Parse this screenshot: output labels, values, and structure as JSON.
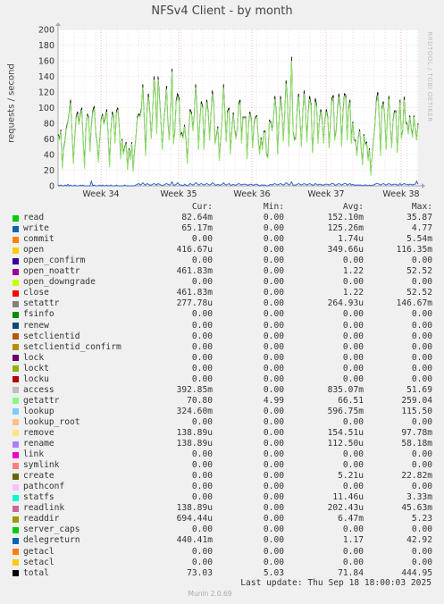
{
  "chart_data": {
    "type": "line",
    "title": "NFSv4 Client - by month",
    "ylabel": "requests / second",
    "ylim": [
      0,
      200
    ],
    "yticks": [
      0,
      20,
      40,
      60,
      80,
      100,
      120,
      140,
      160,
      180,
      200
    ],
    "xticks": [
      "Week 34",
      "Week 35",
      "Week 36",
      "Week 37",
      "Week 38"
    ],
    "grid": true,
    "series": [
      {
        "name": "total",
        "color": "#000000",
        "values": [
          66,
          60,
          72,
          24,
          48,
          58,
          75,
          82,
          94,
          110,
          68,
          30,
          62,
          88,
          95,
          80,
          92,
          100,
          62,
          24,
          72,
          92,
          88,
          45,
          78,
          96,
          102,
          70,
          56,
          32,
          60,
          85,
          92,
          80,
          88,
          98,
          66,
          26,
          70,
          95,
          88,
          56,
          96,
          100,
          76,
          36,
          60,
          42,
          50,
          56,
          22,
          48,
          35,
          56,
          20,
          45,
          62,
          88,
          92,
          90,
          100,
          130,
          85,
          40,
          98,
          118,
          95,
          62,
          92,
          140,
          118,
          68,
          140,
          112,
          84,
          48,
          80,
          100,
          128,
          82,
          60,
          96,
          150,
          55,
          70,
          110,
          118,
          112,
          65,
          68,
          62,
          78,
          58,
          30,
          72,
          98,
          94,
          72,
          92,
          130,
          100,
          48,
          84,
          108,
          102,
          48,
          88,
          110,
          96,
          60,
          92,
          122,
          104,
          55,
          66,
          76,
          34,
          60,
          86,
          130,
          96,
          58,
          96,
          100,
          42,
          72,
          94,
          72,
          62,
          74,
          106,
          110,
          56,
          88,
          88,
          88,
          36,
          78,
          95,
          85,
          50,
          80,
          88,
          90,
          60,
          42,
          62,
          48,
          70,
          70,
          40,
          38,
          84,
          82,
          72,
          86,
          115,
          95,
          42,
          84,
          115,
          98,
          58,
          90,
          135,
          110,
          52,
          100,
          165,
          70,
          60,
          62,
          98,
          118,
          88,
          52,
          92,
          122,
          98,
          58,
          96,
          115,
          104,
          44,
          70,
          112,
          104,
          56,
          84,
          98,
          85,
          56,
          84,
          98,
          88,
          50,
          84,
          112,
          116,
          60,
          70,
          98,
          118,
          100,
          52,
          96,
          118,
          116,
          60,
          100,
          110,
          56,
          82,
          60,
          58,
          40,
          62,
          72,
          50,
          28,
          66,
          54,
          56,
          34,
          48,
          15,
          42,
          60,
          80,
          110,
          120,
          90,
          40,
          100,
          108,
          86,
          48,
          92,
          115,
          76,
          50,
          84,
          96,
          96,
          44,
          76,
          110,
          62,
          72,
          114,
          82,
          80,
          68,
          90,
          74,
          64,
          90,
          72,
          60,
          80
        ]
      },
      {
        "name": "getattr",
        "color": "#8fe36c",
        "values": [
          64,
          58,
          70,
          22,
          46,
          56,
          72,
          80,
          92,
          106,
          66,
          28,
          60,
          86,
          92,
          78,
          90,
          97,
          60,
          22,
          70,
          90,
          86,
          43,
          76,
          93,
          99,
          68,
          54,
          30,
          58,
          83,
          90,
          78,
          86,
          95,
          64,
          24,
          68,
          92,
          86,
          54,
          93,
          97,
          74,
          34,
          58,
          40,
          48,
          54,
          20,
          46,
          33,
          54,
          18,
          43,
          60,
          86,
          90,
          88,
          97,
          126,
          82,
          38,
          95,
          114,
          92,
          60,
          90,
          136,
          114,
          66,
          136,
          108,
          82,
          46,
          78,
          97,
          124,
          80,
          58,
          93,
          146,
          53,
          68,
          107,
          114,
          108,
          63,
          66,
          60,
          76,
          56,
          28,
          70,
          95,
          91,
          70,
          90,
          126,
          97,
          46,
          82,
          105,
          99,
          46,
          86,
          107,
          93,
          58,
          90,
          118,
          101,
          53,
          64,
          74,
          32,
          58,
          84,
          126,
          93,
          56,
          93,
          97,
          40,
          70,
          91,
          70,
          60,
          72,
          103,
          107,
          54,
          86,
          86,
          86,
          34,
          76,
          92,
          83,
          48,
          78,
          86,
          88,
          58,
          40,
          60,
          46,
          68,
          68,
          38,
          36,
          82,
          80,
          70,
          84,
          111,
          92,
          40,
          82,
          111,
          95,
          56,
          88,
          131,
          107,
          50,
          97,
          160,
          68,
          58,
          60,
          95,
          114,
          86,
          50,
          90,
          118,
          95,
          56,
          93,
          111,
          101,
          42,
          68,
          108,
          101,
          54,
          82,
          95,
          83,
          54,
          82,
          95,
          86,
          48,
          82,
          108,
          112,
          58,
          68,
          95,
          114,
          97,
          50,
          93,
          114,
          112,
          58,
          97,
          107,
          54,
          80,
          58,
          56,
          38,
          60,
          70,
          48,
          26,
          64,
          52,
          54,
          32,
          46,
          13,
          40,
          58,
          78,
          106,
          116,
          88,
          38,
          97,
          105,
          84,
          46,
          90,
          111,
          74,
          48,
          82,
          93,
          93,
          42,
          74,
          107,
          60,
          70,
          110,
          80,
          78,
          66,
          88,
          72,
          62,
          88,
          70,
          58,
          78
        ]
      },
      {
        "name": "lookup",
        "color": "#3366cc",
        "values": [
          1,
          0,
          1,
          0,
          0,
          1,
          0,
          2,
          0,
          1,
          0,
          0,
          1,
          0,
          0,
          0,
          1,
          0,
          1,
          0,
          0,
          0,
          0,
          0,
          6,
          0,
          1,
          0,
          0,
          0,
          1,
          0,
          1,
          0,
          0,
          1,
          0,
          0,
          1,
          0,
          0,
          0,
          1,
          0,
          0,
          0,
          0,
          0,
          1,
          0,
          0,
          0,
          0,
          0,
          0,
          0,
          1,
          2,
          3,
          1,
          2,
          4,
          2,
          1,
          3,
          2,
          1,
          1,
          2,
          3,
          2,
          1,
          3,
          2,
          1,
          0,
          1,
          2,
          3,
          2,
          1,
          2,
          5,
          1,
          1,
          2,
          4,
          2,
          1,
          1,
          0,
          2,
          1,
          0,
          1,
          3,
          2,
          1,
          2,
          4,
          3,
          1,
          2,
          3,
          2,
          1,
          2,
          3,
          2,
          1,
          2,
          4,
          3,
          1,
          1,
          2,
          1,
          1,
          2,
          4,
          2,
          1,
          2,
          3,
          1,
          1,
          2,
          1,
          1,
          2,
          3,
          2,
          1,
          2,
          2,
          2,
          1,
          1,
          2,
          2,
          1,
          1,
          2,
          2,
          1,
          0,
          1,
          1,
          1,
          1,
          0,
          0,
          1,
          2,
          1,
          2,
          3,
          2,
          1,
          2,
          3,
          2,
          1,
          2,
          4,
          3,
          1,
          2,
          5,
          1,
          1,
          1,
          2,
          3,
          2,
          1,
          2,
          3,
          2,
          1,
          2,
          3,
          2,
          1,
          1,
          3,
          2,
          1,
          2,
          2,
          1,
          1,
          2,
          2,
          2,
          1,
          2,
          3,
          3,
          1,
          1,
          2,
          3,
          2,
          1,
          2,
          3,
          3,
          1,
          2,
          3,
          1,
          2,
          1,
          1,
          1,
          1,
          1,
          1,
          0,
          1,
          1,
          1,
          0,
          1,
          0,
          1,
          1,
          2,
          3,
          3,
          2,
          1,
          2,
          3,
          2,
          1,
          2,
          3,
          2,
          1,
          2,
          2,
          2,
          1,
          1,
          3,
          1,
          2,
          3,
          2,
          2,
          1,
          2,
          2,
          1,
          2,
          2,
          6,
          2
        ]
      }
    ]
  },
  "side_tag": "RRDTOOL / TOBI OETIKER",
  "legend_header": {
    "cur": "Cur:",
    "min": "Min:",
    "avg": "Avg:",
    "max": "Max:"
  },
  "legend": [
    {
      "name": "read",
      "color": "#00cc00",
      "cur": "82.64m",
      "min": "0.00",
      "avg": "152.10m",
      "max": "35.87"
    },
    {
      "name": "write",
      "color": "#0066b3",
      "cur": "65.17m",
      "min": "0.00",
      "avg": "125.26m",
      "max": "4.77"
    },
    {
      "name": "commit",
      "color": "#ff8000",
      "cur": "0.00",
      "min": "0.00",
      "avg": "1.74u",
      "max": "5.54m"
    },
    {
      "name": "open",
      "color": "#ffcc00",
      "cur": "416.67u",
      "min": "0.00",
      "avg": "349.66u",
      "max": "116.35m"
    },
    {
      "name": "open_confirm",
      "color": "#330099",
      "cur": "0.00",
      "min": "0.00",
      "avg": "0.00",
      "max": "0.00"
    },
    {
      "name": "open_noattr",
      "color": "#990099",
      "cur": "461.83m",
      "min": "0.00",
      "avg": "1.22",
      "max": "52.52"
    },
    {
      "name": "open_downgrade",
      "color": "#ccff00",
      "cur": "0.00",
      "min": "0.00",
      "avg": "0.00",
      "max": "0.00"
    },
    {
      "name": "close",
      "color": "#ff0000",
      "cur": "461.83m",
      "min": "0.00",
      "avg": "1.22",
      "max": "52.52"
    },
    {
      "name": "setattr",
      "color": "#808080",
      "cur": "277.78u",
      "min": "0.00",
      "avg": "264.93u",
      "max": "146.67m"
    },
    {
      "name": "fsinfo",
      "color": "#008f00",
      "cur": "0.00",
      "min": "0.00",
      "avg": "0.00",
      "max": "0.00"
    },
    {
      "name": "renew",
      "color": "#00487d",
      "cur": "0.00",
      "min": "0.00",
      "avg": "0.00",
      "max": "0.00"
    },
    {
      "name": "setclientid",
      "color": "#b35a00",
      "cur": "0.00",
      "min": "0.00",
      "avg": "0.00",
      "max": "0.00"
    },
    {
      "name": "setclientid_confirm",
      "color": "#b38f00",
      "cur": "0.00",
      "min": "0.00",
      "avg": "0.00",
      "max": "0.00"
    },
    {
      "name": "lock",
      "color": "#6b006b",
      "cur": "0.00",
      "min": "0.00",
      "avg": "0.00",
      "max": "0.00"
    },
    {
      "name": "lockt",
      "color": "#8fb300",
      "cur": "0.00",
      "min": "0.00",
      "avg": "0.00",
      "max": "0.00"
    },
    {
      "name": "locku",
      "color": "#b30000",
      "cur": "0.00",
      "min": "0.00",
      "avg": "0.00",
      "max": "0.00"
    },
    {
      "name": "access",
      "color": "#bebebe",
      "cur": "392.85m",
      "min": "0.00",
      "avg": "835.07m",
      "max": "51.69"
    },
    {
      "name": "getattr",
      "color": "#80ff80",
      "cur": "70.80",
      "min": "4.99",
      "avg": "66.51",
      "max": "259.04"
    },
    {
      "name": "lookup",
      "color": "#80c9ff",
      "cur": "324.60m",
      "min": "0.00",
      "avg": "596.75m",
      "max": "115.50"
    },
    {
      "name": "lookup_root",
      "color": "#ffc080",
      "cur": "0.00",
      "min": "0.00",
      "avg": "0.00",
      "max": "0.00"
    },
    {
      "name": "remove",
      "color": "#ffe680",
      "cur": "138.89u",
      "min": "0.00",
      "avg": "154.51u",
      "max": "97.78m"
    },
    {
      "name": "rename",
      "color": "#aa80ff",
      "cur": "138.89u",
      "min": "0.00",
      "avg": "112.50u",
      "max": "58.18m"
    },
    {
      "name": "link",
      "color": "#ee00cc",
      "cur": "0.00",
      "min": "0.00",
      "avg": "0.00",
      "max": "0.00"
    },
    {
      "name": "symlink",
      "color": "#ff8080",
      "cur": "0.00",
      "min": "0.00",
      "avg": "0.00",
      "max": "0.00"
    },
    {
      "name": "create",
      "color": "#666600",
      "cur": "0.00",
      "min": "0.00",
      "avg": "5.21u",
      "max": "22.82m"
    },
    {
      "name": "pathconf",
      "color": "#ffbfff",
      "cur": "0.00",
      "min": "0.00",
      "avg": "0.00",
      "max": "0.00"
    },
    {
      "name": "statfs",
      "color": "#00ffcc",
      "cur": "0.00",
      "min": "0.00",
      "avg": "11.46u",
      "max": "3.33m"
    },
    {
      "name": "readlink",
      "color": "#cc6699",
      "cur": "138.89u",
      "min": "0.00",
      "avg": "202.43u",
      "max": "45.63m"
    },
    {
      "name": "readdir",
      "color": "#999900",
      "cur": "694.44u",
      "min": "0.00",
      "avg": "6.47m",
      "max": "5.23"
    },
    {
      "name": "server_caps",
      "color": "#00cc00",
      "cur": "0.00",
      "min": "0.00",
      "avg": "0.00",
      "max": "0.00"
    },
    {
      "name": "delegreturn",
      "color": "#0066b3",
      "cur": "440.41m",
      "min": "0.00",
      "avg": "1.17",
      "max": "42.92"
    },
    {
      "name": "getacl",
      "color": "#ff8000",
      "cur": "0.00",
      "min": "0.00",
      "avg": "0.00",
      "max": "0.00"
    },
    {
      "name": "setacl",
      "color": "#ffcc00",
      "cur": "0.00",
      "min": "0.00",
      "avg": "0.00",
      "max": "0.00"
    },
    {
      "name": "total",
      "color": "#000000",
      "cur": "73.03",
      "min": "5.03",
      "avg": "71.84",
      "max": "444.95"
    }
  ],
  "footer": {
    "last_update": "Last update: Thu Sep 18 18:00:03 2025",
    "munin": "Munin 2.0.69"
  }
}
